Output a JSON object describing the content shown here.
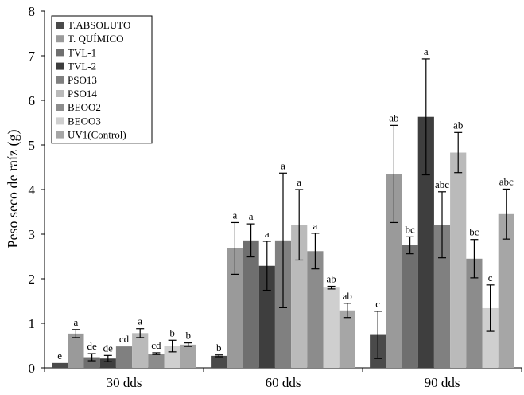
{
  "chart_data": {
    "type": "bar",
    "title": "",
    "xlabel": "",
    "ylabel": "Peso seco de raíz (g)",
    "ylim": [
      0,
      8
    ],
    "yticks": [
      0,
      1,
      2,
      3,
      4,
      5,
      6,
      7,
      8
    ],
    "grid": false,
    "legend_position": "top-left",
    "categories": [
      "30 dds",
      "60 dds",
      "90 dds"
    ],
    "series": [
      {
        "name": "T.ABSOLUTO",
        "color": "#4a4a4a",
        "values": [
          0.11,
          0.27,
          0.74
        ],
        "errors": [
          0.0,
          0.02,
          0.53
        ],
        "labels": [
          "e",
          "b",
          "c"
        ]
      },
      {
        "name": "T. QUÍMICO",
        "color": "#9a9a9a",
        "values": [
          0.77,
          2.68,
          4.35
        ],
        "errors": [
          0.09,
          0.58,
          1.09
        ],
        "labels": [
          "a",
          "a",
          "ab"
        ]
      },
      {
        "name": "TVL-1",
        "color": "#6f6f6f",
        "values": [
          0.24,
          2.86,
          2.75
        ],
        "errors": [
          0.08,
          0.37,
          0.19
        ],
        "labels": [
          "de",
          "a",
          "bc"
        ]
      },
      {
        "name": "TVL-2",
        "color": "#3e3e3e",
        "values": [
          0.21,
          2.29,
          5.63
        ],
        "errors": [
          0.07,
          0.55,
          1.3
        ],
        "labels": [
          "de",
          "a",
          "a"
        ]
      },
      {
        "name": "PSO13",
        "color": "#808080",
        "values": [
          0.48,
          2.86,
          3.21
        ],
        "errors": [
          0.0,
          1.51,
          0.74
        ],
        "labels": [
          "cd",
          "a",
          "abc"
        ]
      },
      {
        "name": "PSO14",
        "color": "#bababa",
        "values": [
          0.78,
          3.21,
          4.83
        ],
        "errors": [
          0.1,
          0.79,
          0.45
        ],
        "labels": [
          "a",
          "a",
          "ab"
        ]
      },
      {
        "name": "BEOO2",
        "color": "#8c8c8c",
        "values": [
          0.32,
          2.62,
          2.45
        ],
        "errors": [
          0.02,
          0.4,
          0.43
        ],
        "labels": [
          "cd",
          "a",
          "bc"
        ]
      },
      {
        "name": "BEOO3",
        "color": "#cfcfcf",
        "values": [
          0.49,
          1.8,
          1.34
        ],
        "errors": [
          0.13,
          0.03,
          0.52
        ],
        "labels": [
          "b",
          "ab",
          "c"
        ]
      },
      {
        "name": "UV1(Control)",
        "color": "#a6a6a6",
        "values": [
          0.52,
          1.29,
          3.45
        ],
        "errors": [
          0.04,
          0.16,
          0.56
        ],
        "labels": [
          "b",
          "ab",
          "abc"
        ]
      }
    ]
  }
}
